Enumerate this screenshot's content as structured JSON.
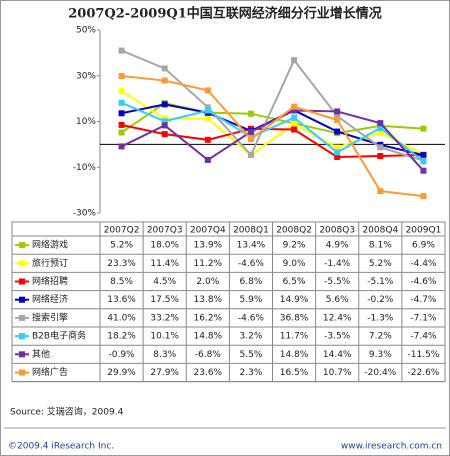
{
  "chart_data": {
    "type": "line",
    "title": "2007Q2-2009Q1中国互联网经济细分行业增长情况",
    "categories": [
      "2007Q2",
      "2007Q3",
      "2007Q4",
      "2008Q1",
      "2008Q2",
      "2008Q3",
      "2008Q4",
      "2009Q1"
    ],
    "ylim": [
      -30,
      50
    ],
    "yticks": [
      {
        "value": -30,
        "label": "-30%"
      },
      {
        "value": -10,
        "label": "-10%"
      },
      {
        "value": 10,
        "label": "10%"
      },
      {
        "value": 30,
        "label": "30%"
      },
      {
        "value": 50,
        "label": "50%"
      }
    ],
    "series": [
      {
        "name": "网络游戏",
        "color": "#99cc00",
        "values": [
          5.2,
          18.0,
          13.9,
          13.4,
          9.2,
          4.9,
          8.1,
          6.9
        ],
        "value_labels": [
          "5.2%",
          "18.0%",
          "13.9%",
          "13.4%",
          "9.2%",
          "4.9%",
          "8.1%",
          "6.9%"
        ]
      },
      {
        "name": "旅行预订",
        "color": "#ffff00",
        "values": [
          23.3,
          11.4,
          11.2,
          -4.6,
          9.0,
          -1.4,
          5.2,
          -4.4
        ],
        "value_labels": [
          "23.3%",
          "11.4%",
          "11.2%",
          "-4.6%",
          "9.0%",
          "-1.4%",
          "5.2%",
          "-4.4%"
        ]
      },
      {
        "name": "网络招聘",
        "color": "#ff0000",
        "values": [
          8.5,
          4.5,
          2.0,
          6.8,
          6.5,
          -5.5,
          -5.1,
          -4.6
        ],
        "value_labels": [
          "8.5%",
          "4.5%",
          "2.0%",
          "6.8%",
          "6.5%",
          "-5.5%",
          "-5.1%",
          "-4.6%"
        ]
      },
      {
        "name": "网络经济",
        "color": "#0000cc",
        "values": [
          13.6,
          17.5,
          13.8,
          5.9,
          14.9,
          5.6,
          -0.2,
          -4.7
        ],
        "value_labels": [
          "13.6%",
          "17.5%",
          "13.8%",
          "5.9%",
          "14.9%",
          "5.6%",
          "-0.2%",
          "-4.7%"
        ]
      },
      {
        "name": "搜索引擎",
        "color": "#a6a6a6",
        "values": [
          41.0,
          33.2,
          16.2,
          -4.6,
          36.8,
          12.4,
          -1.3,
          -7.1
        ],
        "value_labels": [
          "41.0%",
          "33.2%",
          "16.2%",
          "-4.6%",
          "36.8%",
          "12.4%",
          "-1.3%",
          "-7.1%"
        ]
      },
      {
        "name": "B2B电子商务",
        "color": "#33ccff",
        "values": [
          18.2,
          10.1,
          14.8,
          3.2,
          11.7,
          -3.5,
          7.2,
          -7.4
        ],
        "value_labels": [
          "18.2%",
          "10.1%",
          "14.8%",
          "3.2%",
          "11.7%",
          "-3.5%",
          "7.2%",
          "-7.4%"
        ]
      },
      {
        "name": "其他",
        "color": "#7030a0",
        "values": [
          -0.9,
          8.3,
          -6.8,
          5.5,
          14.8,
          14.4,
          9.3,
          -11.5
        ],
        "value_labels": [
          "-0.9%",
          "8.3%",
          "-6.8%",
          "5.5%",
          "14.8%",
          "14.4%",
          "9.3%",
          "-11.5%"
        ]
      },
      {
        "name": "网络广告",
        "color": "#ff9933",
        "values": [
          29.9,
          27.9,
          23.6,
          2.3,
          16.5,
          10.7,
          -20.4,
          -22.6
        ],
        "value_labels": [
          "29.9%",
          "27.9%",
          "23.6%",
          "2.3%",
          "16.5%",
          "10.7%",
          "-20.4%",
          "-22.6%"
        ]
      }
    ],
    "source": "Source:  艾瑞咨询，2009.4",
    "copyright": "©2009.4 iResearch Inc.",
    "website": "www.iresearch.com.cn"
  }
}
